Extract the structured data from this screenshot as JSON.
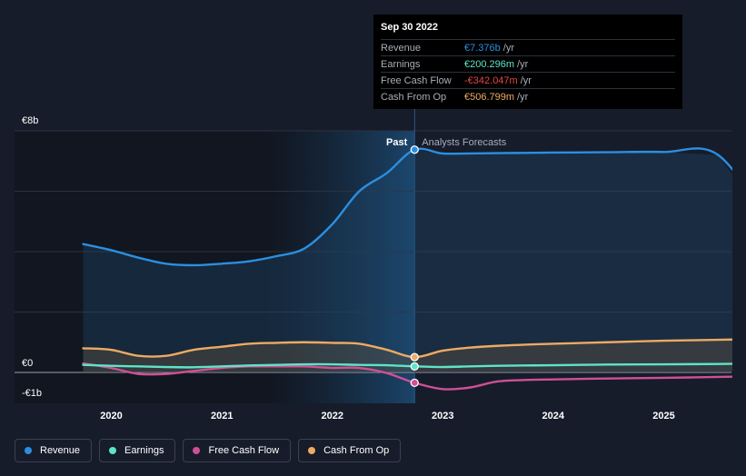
{
  "chart_data": {
    "type": "line",
    "currency": "€",
    "y_tick_labels": [
      "€8b",
      "€0",
      "-€1b"
    ],
    "ylim": [
      -1,
      8
    ],
    "x_tick_labels": [
      "2020",
      "2021",
      "2022",
      "2023",
      "2024",
      "2025"
    ],
    "past_label": "Past",
    "forecast_label": "Analysts Forecasts",
    "divider_date": "2022-09-30",
    "x": [
      "2019-09-30",
      "2019-12-31",
      "2020-03-31",
      "2020-06-30",
      "2020-09-30",
      "2020-12-31",
      "2021-03-31",
      "2021-06-30",
      "2021-09-30",
      "2021-12-31",
      "2022-03-31",
      "2022-06-30",
      "2022-09-30",
      "2022-12-31",
      "2023-03-31",
      "2023-06-30",
      "2023-09-30",
      "2023-12-31",
      "2024-06-30",
      "2024-12-31",
      "2025-06-30",
      "2025-12-31"
    ],
    "series": [
      {
        "name": "Revenue",
        "color": "#2b8fe0",
        "values": [
          4.25,
          4.05,
          3.8,
          3.6,
          3.55,
          3.6,
          3.68,
          3.85,
          4.1,
          4.9,
          6.0,
          6.6,
          7.376,
          7.25,
          7.25,
          7.26,
          7.27,
          7.28,
          7.29,
          7.3,
          7.2,
          4.7
        ]
      },
      {
        "name": "Earnings",
        "color": "#5ee4c6",
        "values": [
          0.25,
          0.22,
          0.2,
          0.18,
          0.17,
          0.2,
          0.23,
          0.25,
          0.27,
          0.27,
          0.25,
          0.24,
          0.2,
          0.18,
          0.2,
          0.22,
          0.23,
          0.24,
          0.26,
          0.27,
          0.28,
          0.3
        ]
      },
      {
        "name": "Free Cash Flow",
        "color": "#d04f96",
        "values": [
          0.3,
          0.15,
          -0.05,
          -0.05,
          0.05,
          0.15,
          0.2,
          0.2,
          0.2,
          0.15,
          0.15,
          -0.02,
          -0.342,
          -0.55,
          -0.5,
          -0.3,
          -0.25,
          -0.23,
          -0.2,
          -0.18,
          -0.15,
          -0.12
        ]
      },
      {
        "name": "Cash From Op",
        "color": "#eeaa62",
        "values": [
          0.8,
          0.75,
          0.55,
          0.55,
          0.75,
          0.85,
          0.95,
          0.98,
          1.0,
          0.98,
          0.95,
          0.75,
          0.5068,
          0.72,
          0.82,
          0.88,
          0.92,
          0.95,
          1.0,
          1.05,
          1.08,
          1.12
        ]
      }
    ],
    "tooltip": {
      "date": "Sep 30 2022",
      "rows": [
        {
          "label": "Revenue",
          "value": "€7.376b",
          "unit": "/yr",
          "color": "#2b8fe0"
        },
        {
          "label": "Earnings",
          "value": "€200.296m",
          "unit": "/yr",
          "color": "#5ee4c6"
        },
        {
          "label": "Free Cash Flow",
          "value": "-€342.047m",
          "unit": "/yr",
          "color": "#e84545"
        },
        {
          "label": "Cash From Op",
          "value": "€506.799m",
          "unit": "/yr",
          "color": "#eeaa62"
        }
      ]
    },
    "legend": [
      {
        "label": "Revenue",
        "color": "#2b8fe0"
      },
      {
        "label": "Earnings",
        "color": "#5ee4c6"
      },
      {
        "label": "Free Cash Flow",
        "color": "#d04f96"
      },
      {
        "label": "Cash From Op",
        "color": "#eeaa62"
      }
    ],
    "grid": true,
    "legend_position": "bottom-left"
  }
}
